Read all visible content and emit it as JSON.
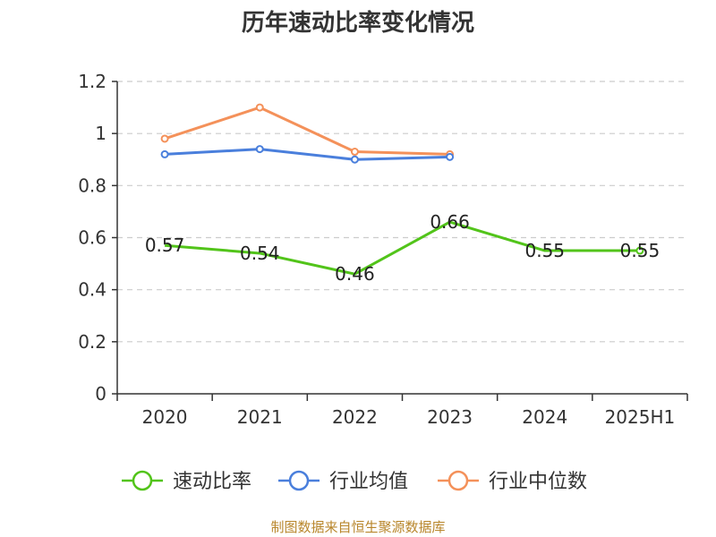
{
  "chart_data": {
    "type": "line",
    "title": "历年速动比率变化情况",
    "categories": [
      "2020",
      "2021",
      "2022",
      "2023",
      "2024",
      "2025H1"
    ],
    "ylim": [
      0,
      1.2
    ],
    "yticks": [
      "0",
      "0.2",
      "0.4",
      "0.6",
      "0.8",
      "1",
      "1.2"
    ],
    "grid": true,
    "legend_position": "bottom",
    "series": [
      {
        "name": "速动比率",
        "color": "#52c41a",
        "values": [
          0.57,
          0.54,
          0.46,
          0.66,
          0.55,
          0.55
        ],
        "labels": [
          "0.57",
          "0.54",
          "0.46",
          "0.66",
          "0.55",
          "0.55"
        ],
        "marker": "hidden-except-last"
      },
      {
        "name": "行业均值",
        "color": "#4a7fdc",
        "values": [
          0.92,
          0.94,
          0.9,
          0.91,
          null,
          null
        ]
      },
      {
        "name": "行业中位数",
        "color": "#f4915a",
        "values": [
          0.98,
          1.1,
          0.93,
          0.92,
          null,
          null
        ]
      }
    ]
  },
  "source": "制图数据来自恒生聚源数据库"
}
